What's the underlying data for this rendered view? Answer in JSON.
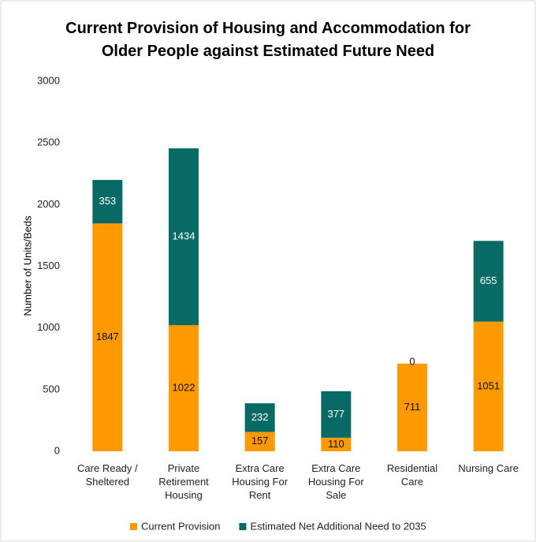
{
  "chart_data": {
    "type": "stacked_bar",
    "title": "Current Provision of Housing and Accommodation for Older People against Estimated Future Need",
    "y_label": "Number of Units/Beds",
    "categories": [
      "Care Ready / Sheltered",
      "Private Retirement Housing",
      "Extra Care Housing For Rent",
      "Extra Care Housing For Sale",
      "Residential Care",
      "Nursing Care"
    ],
    "series": [
      {
        "name": "Current Provision",
        "color": "#ff9900",
        "values": [
          1847,
          1022,
          157,
          110,
          711,
          1051
        ]
      },
      {
        "name": "Estimated Net Additional Need to 2035",
        "color": "#086a64",
        "values": [
          353,
          1434,
          232,
          377,
          0,
          655
        ]
      }
    ],
    "ylim": [
      0,
      3000
    ],
    "yticks": [
      0,
      500,
      1000,
      1500,
      2000,
      2500,
      3000
    ],
    "grid": false,
    "legend": "bottom"
  }
}
